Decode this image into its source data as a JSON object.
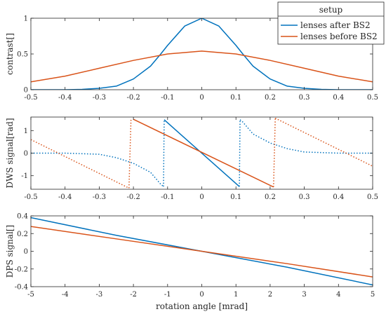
{
  "chart_data": [
    {
      "type": "line",
      "ylabel": "contrast[]",
      "xlim": [
        -0.5,
        0.5
      ],
      "ylim": [
        0,
        1
      ],
      "xticks": [
        -0.5,
        -0.4,
        -0.3,
        -0.2,
        -0.1,
        0,
        0.1,
        0.2,
        0.3,
        0.4,
        0.5
      ],
      "xtick_labels": [
        "-0.5",
        "-0.4",
        "-0.3",
        "-0.2",
        "-0.1",
        "0",
        "0.1",
        "0.2",
        "0.3",
        "0.4",
        "0.5"
      ],
      "yticks": [
        0,
        0.5,
        1
      ],
      "ytick_labels": [
        "0",
        "0.5",
        "1"
      ],
      "grid": false,
      "series": [
        {
          "name": "lenses after BS2",
          "color": "#0072BD",
          "points": [
            [
              -0.5,
              0.0
            ],
            [
              -0.45,
              0.0
            ],
            [
              -0.4,
              0.0
            ],
            [
              -0.35,
              0.005
            ],
            [
              -0.3,
              0.02
            ],
            [
              -0.25,
              0.05
            ],
            [
              -0.2,
              0.15
            ],
            [
              -0.15,
              0.33
            ],
            [
              -0.12,
              0.5
            ],
            [
              -0.1,
              0.62
            ],
            [
              -0.05,
              0.89
            ],
            [
              0,
              1.0
            ],
            [
              0.05,
              0.89
            ],
            [
              0.1,
              0.62
            ],
            [
              0.12,
              0.5
            ],
            [
              0.15,
              0.33
            ],
            [
              0.2,
              0.15
            ],
            [
              0.25,
              0.05
            ],
            [
              0.3,
              0.02
            ],
            [
              0.35,
              0.005
            ],
            [
              0.4,
              0.0
            ],
            [
              0.45,
              0.0
            ],
            [
              0.5,
              0.0
            ]
          ]
        },
        {
          "name": "lenses before BS2",
          "color": "#D95319",
          "points": [
            [
              -0.5,
              0.11
            ],
            [
              -0.4,
              0.19
            ],
            [
              -0.3,
              0.3
            ],
            [
              -0.2,
              0.41
            ],
            [
              -0.1,
              0.5
            ],
            [
              0,
              0.54
            ],
            [
              0.1,
              0.5
            ],
            [
              0.2,
              0.41
            ],
            [
              0.3,
              0.3
            ],
            [
              0.4,
              0.19
            ],
            [
              0.5,
              0.11
            ]
          ]
        }
      ],
      "legend": {
        "title": "setup",
        "placement": "top-right",
        "entries": [
          "lenses after BS2",
          "lenses before BS2"
        ]
      }
    },
    {
      "type": "line",
      "ylabel": "DWS signal[rad]",
      "xlim": [
        -0.5,
        0.5
      ],
      "ylim": [
        -1.6,
        1.6
      ],
      "xticks": [
        -0.5,
        -0.4,
        -0.3,
        -0.2,
        -0.1,
        0,
        0.1,
        0.2,
        0.3,
        0.4,
        0.5
      ],
      "xtick_labels": [
        "-0.5",
        "-0.4",
        "-0.3",
        "-0.2",
        "-0.1",
        "0",
        "0.1",
        "0.2",
        "0.3",
        "0.4",
        "0.5"
      ],
      "yticks": [
        -1,
        0,
        1
      ],
      "ytick_labels": [
        "-1",
        "0",
        "1"
      ],
      "grid": false,
      "series": [
        {
          "color": "#0072BD",
          "style": "dotted",
          "points": [
            [
              -0.5,
              0.0
            ],
            [
              -0.4,
              0.0
            ],
            [
              -0.3,
              -0.05
            ],
            [
              -0.25,
              -0.2
            ],
            [
              -0.2,
              -0.45
            ],
            [
              -0.15,
              -0.85
            ],
            [
              -0.12,
              -1.38
            ],
            [
              -0.112,
              -1.48
            ]
          ]
        },
        {
          "color": "#0072BD",
          "style": "dotted",
          "points": [
            [
              -0.112,
              -1.48
            ],
            [
              -0.11,
              1.48
            ]
          ]
        },
        {
          "color": "#0072BD",
          "style": "solid",
          "points": [
            [
              -0.11,
              1.48
            ],
            [
              0.11,
              -1.48
            ]
          ]
        },
        {
          "color": "#0072BD",
          "style": "dotted",
          "points": [
            [
              0.11,
              -1.48
            ],
            [
              0.112,
              1.48
            ]
          ]
        },
        {
          "color": "#0072BD",
          "style": "dotted",
          "points": [
            [
              0.112,
              1.48
            ],
            [
              0.12,
              1.38
            ],
            [
              0.15,
              0.85
            ],
            [
              0.2,
              0.45
            ],
            [
              0.25,
              0.2
            ],
            [
              0.3,
              0.05
            ],
            [
              0.4,
              0.0
            ],
            [
              0.5,
              0.0
            ]
          ]
        },
        {
          "color": "#D95319",
          "style": "dotted",
          "points": [
            [
              -0.5,
              0.6
            ],
            [
              -0.213,
              -1.55
            ]
          ]
        },
        {
          "color": "#D95319",
          "style": "dotted",
          "points": [
            [
              -0.213,
              -1.55
            ],
            [
              -0.207,
              1.55
            ]
          ]
        },
        {
          "color": "#D95319",
          "style": "solid",
          "points": [
            [
              -0.2,
              1.5
            ],
            [
              0.21,
              -1.5
            ]
          ]
        },
        {
          "color": "#D95319",
          "style": "dotted",
          "points": [
            [
              0.21,
              -1.5
            ],
            [
              0.215,
              1.55
            ]
          ]
        },
        {
          "color": "#D95319",
          "style": "dotted",
          "points": [
            [
              0.215,
              1.55
            ],
            [
              0.5,
              -0.58
            ]
          ]
        }
      ]
    },
    {
      "type": "line",
      "xlabel": "rotation angle [mrad]",
      "ylabel": "DPS signal[]",
      "xlim": [
        -5,
        5
      ],
      "ylim": [
        -0.4,
        0.4
      ],
      "xticks": [
        -5,
        -4,
        -3,
        -2,
        -1,
        0,
        1,
        2,
        3,
        4,
        5
      ],
      "xtick_labels": [
        "-5",
        "-4",
        "-3",
        "-2",
        "-1",
        "0",
        "1",
        "2",
        "3",
        "4",
        "5"
      ],
      "yticks": [
        -0.4,
        -0.2,
        0,
        0.2,
        0.4
      ],
      "ytick_labels": [
        "-0.4",
        "-0.2",
        "0",
        "0.2",
        "0.4"
      ],
      "grid": false,
      "series": [
        {
          "name": "lenses after BS2",
          "color": "#0072BD",
          "points": [
            [
              -5,
              0.38
            ],
            [
              -2.5,
              0.18
            ],
            [
              0,
              0
            ],
            [
              2.5,
              -0.18
            ],
            [
              5,
              -0.38
            ]
          ]
        },
        {
          "name": "lenses before BS2",
          "color": "#D95319",
          "points": [
            [
              -5,
              0.28
            ],
            [
              -2.5,
              0.14
            ],
            [
              0,
              0
            ],
            [
              2.5,
              -0.14
            ],
            [
              5,
              -0.29
            ]
          ]
        }
      ]
    }
  ]
}
